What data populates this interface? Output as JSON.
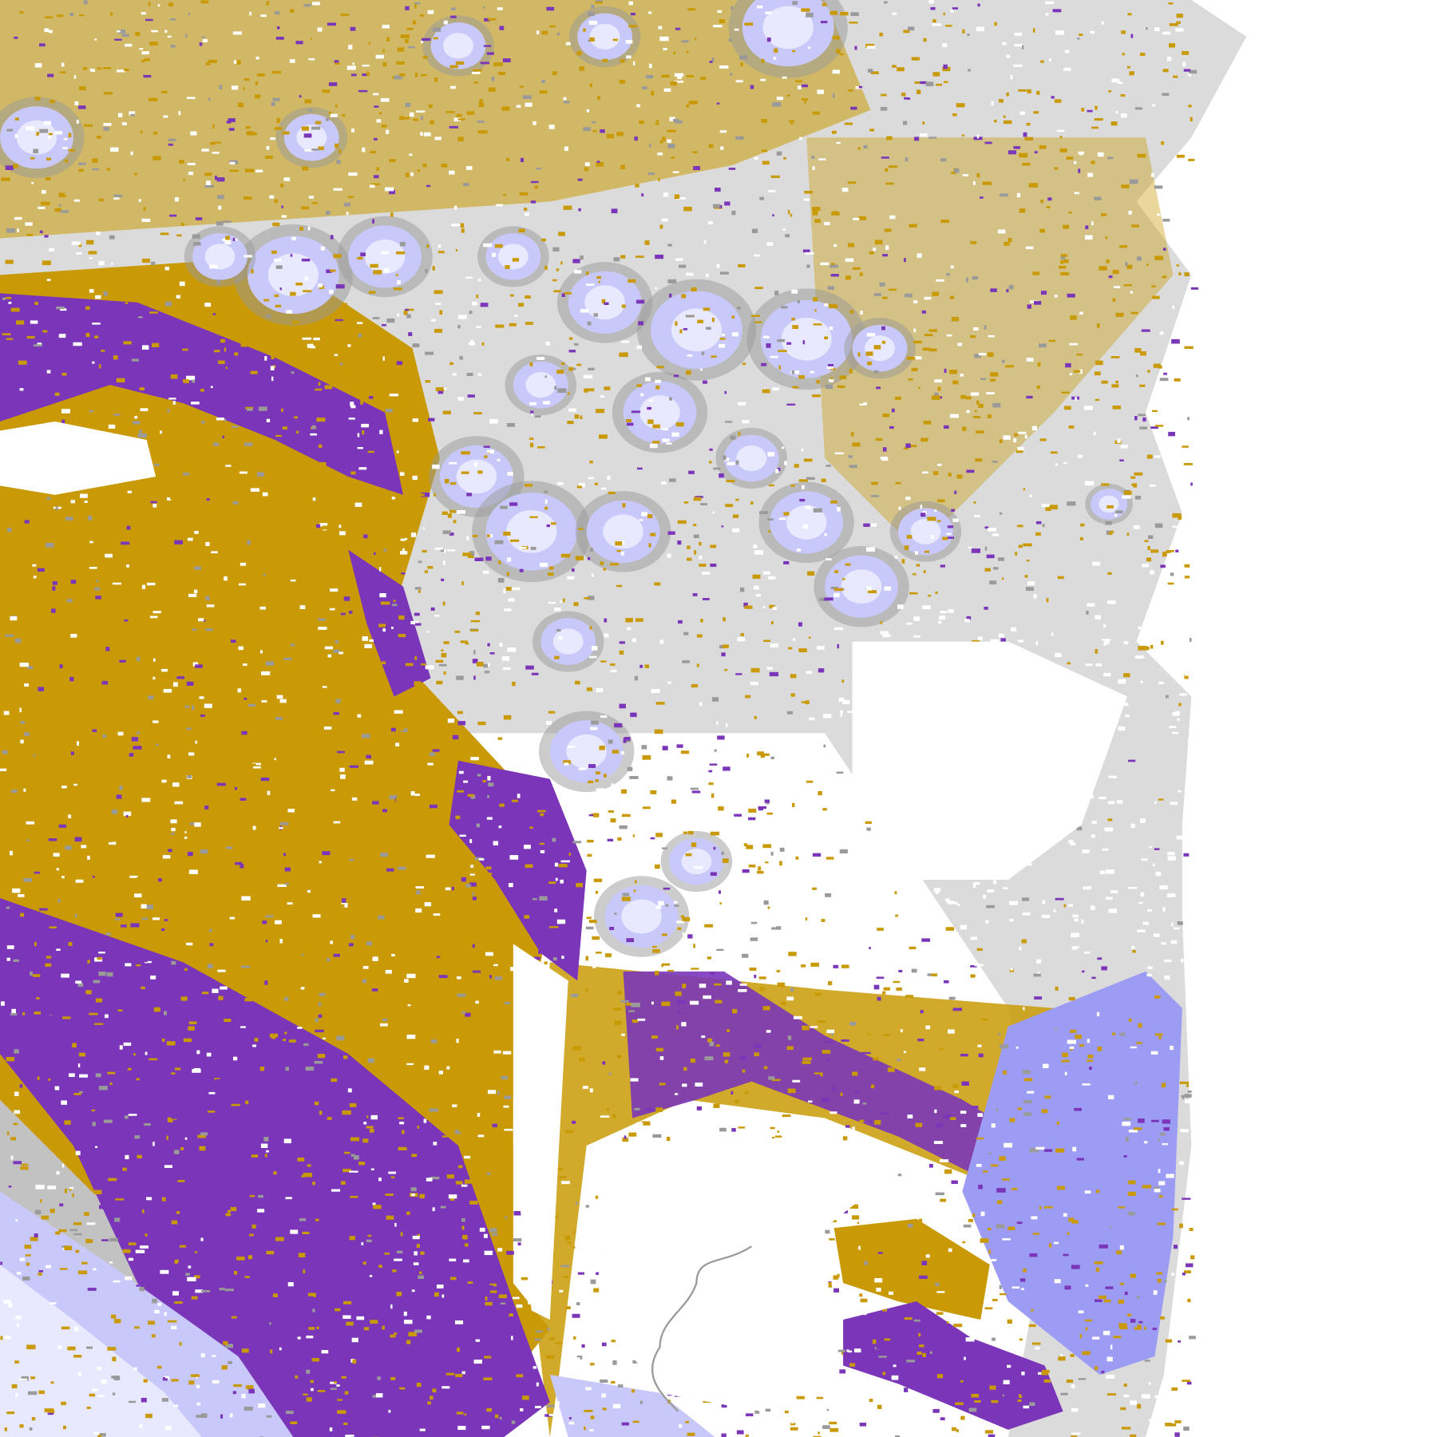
{
  "map": {
    "kind": "satellite cloud/surface classification image",
    "colors": {
      "background": "#ffffff",
      "gold": "#c99a06",
      "purple": "#7a35b8",
      "magenta": "#c050e0",
      "lavender": "#c8c8fa",
      "periwinkle": "#9c9cf5",
      "pale": "#e8e8ff",
      "gray": "#9a9a9a",
      "light_gray": "#b8b8b8"
    }
  }
}
